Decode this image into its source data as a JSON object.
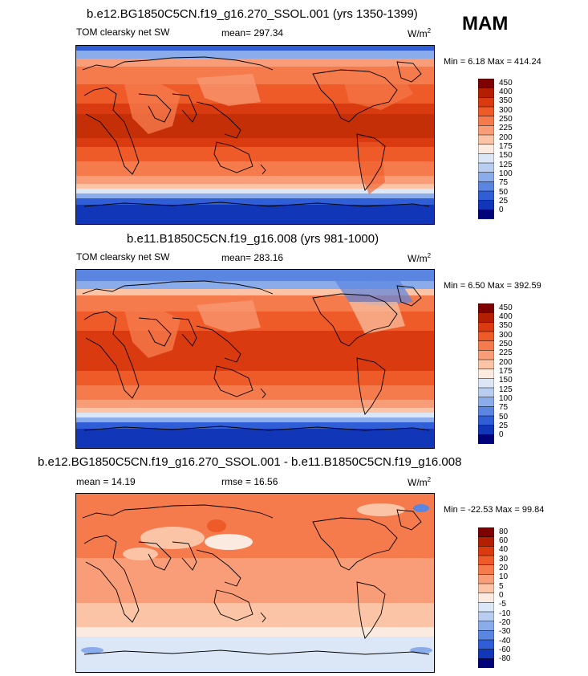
{
  "season": "MAM",
  "units_base": "W/m",
  "units_exp": "2",
  "panels": [
    {
      "title": "b.e12.BG1850C5CN.f19_g16.270_SSOL.001 (yrs 1350-1399)",
      "left_label": "TOM clearsky net SW",
      "center_label": "mean= 297.34",
      "minmax": "Min =  6.18 Max = 414.24",
      "colorbar": [
        "450",
        "400",
        "350",
        "300",
        "250",
        "225",
        "200",
        "175",
        "150",
        "125",
        "100",
        "75",
        "50",
        "25",
        "0"
      ]
    },
    {
      "title": "b.e11.B1850C5CN.f19_g16.008 (yrs 981-1000)",
      "left_label": "TOM clearsky net SW",
      "center_label": "mean= 283.16",
      "minmax": "Min =  6.50 Max = 392.59",
      "colorbar": [
        "450",
        "400",
        "350",
        "300",
        "250",
        "225",
        "200",
        "175",
        "150",
        "125",
        "100",
        "75",
        "50",
        "25",
        "0"
      ]
    },
    {
      "title": "b.e12.BG1850C5CN.f19_g16.270_SSOL.001 - b.e11.B1850C5CN.f19_g16.008",
      "left_label": "mean =  14.19",
      "center_label": "rmse =  16.56",
      "minmax": "Min = -22.53 Max =  99.84",
      "colorbar": [
        "80",
        "60",
        "40",
        "30",
        "20",
        "10",
        "5",
        "0",
        "-5",
        "-10",
        "-20",
        "-30",
        "-40",
        "-60",
        "-80"
      ]
    }
  ],
  "colors": {
    "abs_scale": [
      "#7f0000",
      "#b31f00",
      "#d93a0f",
      "#ee5a28",
      "#f57b4c",
      "#f99d78",
      "#fbc4a6",
      "#fbeae0",
      "#dbe6f7",
      "#b8cdf0",
      "#8aacea",
      "#5a85e0",
      "#2f5ed6",
      "#1137b8",
      "#00037a"
    ],
    "diff_scale": [
      "#7f0000",
      "#b31f00",
      "#d93a0f",
      "#ee5a28",
      "#f57b4c",
      "#f99d78",
      "#fbc4a6",
      "#fbeae0",
      "#dbe6f7",
      "#b8cdf0",
      "#8aacea",
      "#5a85e0",
      "#2f5ed6",
      "#1137b8",
      "#00037a"
    ]
  }
}
